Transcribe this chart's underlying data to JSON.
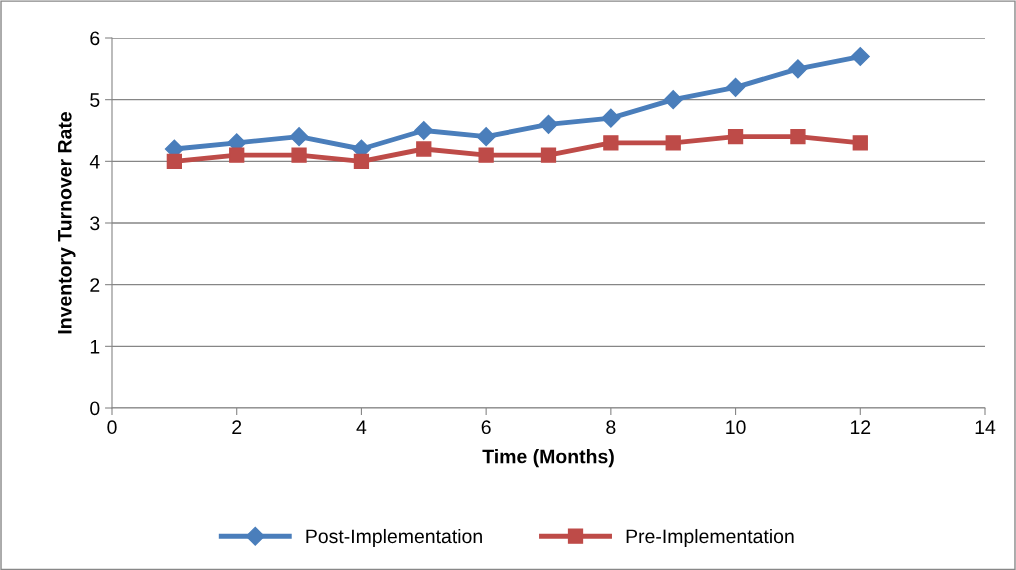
{
  "chart_data": {
    "type": "line",
    "xlabel": "Time (Months)",
    "ylabel": "Inventory Turnover Rate",
    "x": [
      1,
      2,
      3,
      4,
      5,
      6,
      7,
      8,
      9,
      10,
      11,
      12
    ],
    "series": [
      {
        "name": "Post-Implementation",
        "color": "#4a7ebb",
        "marker": "diamond",
        "values": [
          4.2,
          4.3,
          4.4,
          4.2,
          4.5,
          4.4,
          4.6,
          4.7,
          5.0,
          5.2,
          5.5,
          5.7
        ]
      },
      {
        "name": "Pre-Implementation",
        "color": "#be4b48",
        "marker": "square",
        "values": [
          4.0,
          4.1,
          4.1,
          4.0,
          4.2,
          4.1,
          4.1,
          4.3,
          4.3,
          4.4,
          4.4,
          4.3
        ]
      }
    ],
    "xlim": [
      0,
      14
    ],
    "xticks": [
      0,
      2,
      4,
      6,
      8,
      10,
      12,
      14
    ],
    "ylim": [
      0,
      6
    ],
    "yticks": [
      0,
      1,
      2,
      3,
      4,
      5,
      6
    ],
    "grid": "y",
    "legend": "bottom",
    "line_style": "solid"
  }
}
